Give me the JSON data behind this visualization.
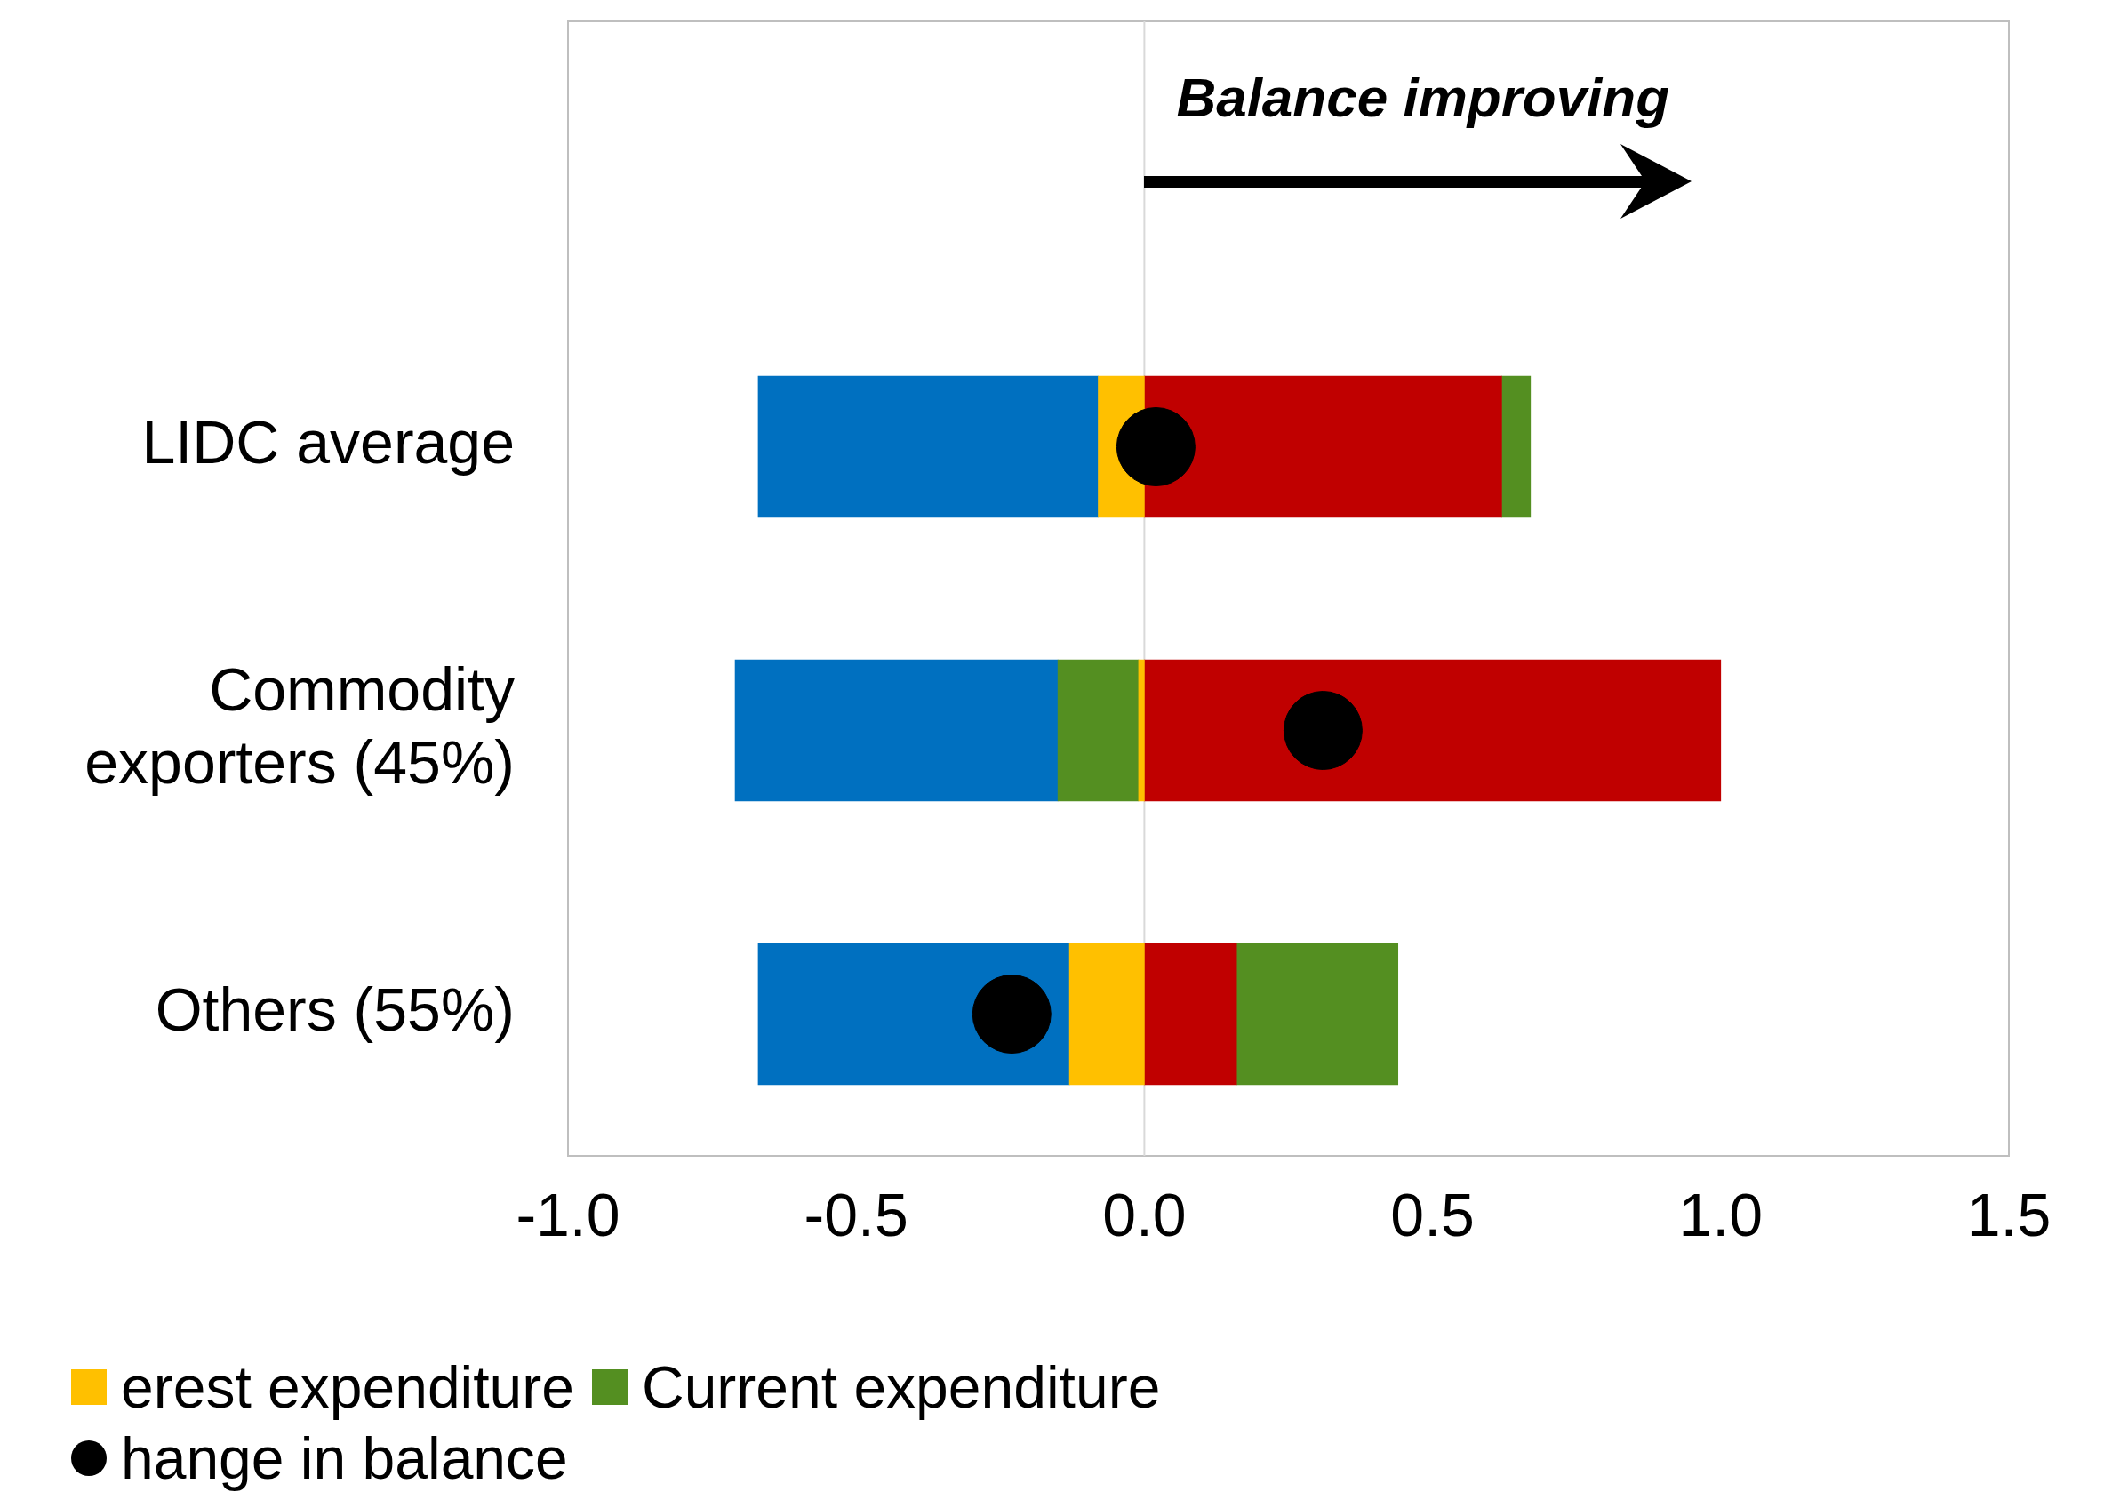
{
  "chart_data": {
    "type": "bar",
    "orientation": "horizontal",
    "stacked": true,
    "categories": [
      "LIDC average",
      "Commodity exporters (45%)",
      "Others (55%)"
    ],
    "series": [
      {
        "name": "erest expenditure",
        "color": "#ffc000",
        "values": [
          -0.08,
          -0.01,
          -0.13
        ]
      },
      {
        "color": "#c00000",
        "values": [
          0.62,
          1.0,
          0.16
        ]
      },
      {
        "name": "Current expenditure",
        "color": "#548f21",
        "values": [
          0.05,
          -0.14,
          0.28
        ]
      },
      {
        "color": "#0070c0",
        "values": [
          -0.59,
          -0.56,
          -0.54
        ]
      },
      {
        "name": "hange in balance",
        "type": "scatter",
        "color": "#000000",
        "x": [
          "LIDC average",
          "Commodity exporters (45%)",
          "Others (55%)"
        ],
        "values": [
          0.02,
          0.31,
          -0.23
        ]
      }
    ],
    "xlim": [
      -1.0,
      1.5
    ],
    "xticks": [
      {
        "value": -1.0,
        "label": "-1.0"
      },
      {
        "value": -0.5,
        "label": "-0.5"
      },
      {
        "value": 0,
        "label": "0.0"
      },
      {
        "value": 0.5,
        "label": "0.5"
      },
      {
        "value": 1.0,
        "label": "1.0"
      },
      {
        "value": 1.5,
        "label": "1.5"
      }
    ],
    "ref_lines": [
      {
        "axis": "x",
        "value": 0,
        "color": "#d9d9d9"
      }
    ],
    "annotations": [
      "Balance improving"
    ],
    "grid": false,
    "legend": "bottom",
    "marker": "circle"
  }
}
